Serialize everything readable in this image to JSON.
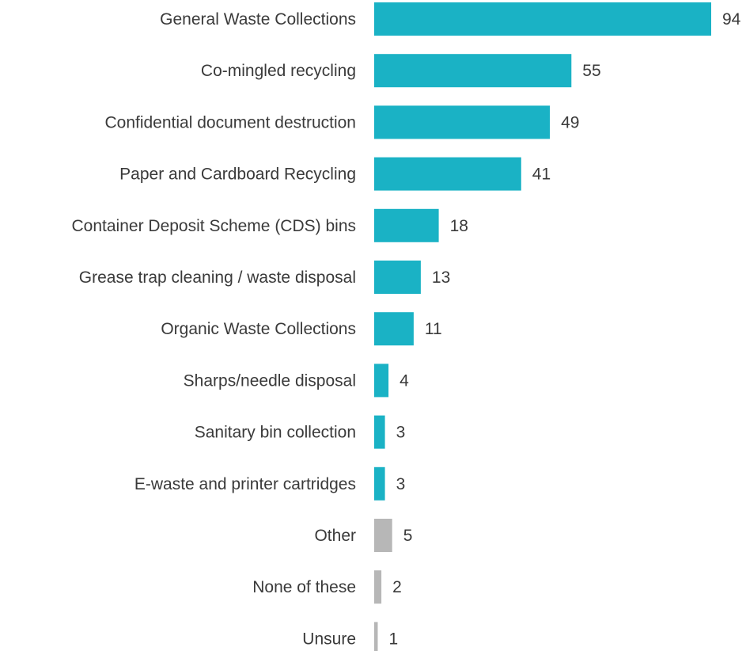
{
  "chart_data": {
    "type": "bar",
    "orientation": "horizontal",
    "title": "",
    "xlabel": "",
    "ylabel": "",
    "categories": [
      "General Waste Collections",
      "Co-mingled recycling",
      "Confidential document destruction",
      "Paper and Cardboard Recycling",
      "Container Deposit Scheme (CDS) bins",
      "Grease trap cleaning / waste disposal",
      "Organic Waste Collections",
      "Sharps/needle disposal",
      "Sanitary bin collection",
      "E-waste and printer cartridges",
      "Other",
      "None of these",
      "Unsure"
    ],
    "values": [
      94,
      55,
      49,
      41,
      18,
      13,
      11,
      4,
      3,
      3,
      5,
      2,
      1
    ],
    "bar_colors": [
      "#1ab2c5",
      "#1ab2c5",
      "#1ab2c5",
      "#1ab2c5",
      "#1ab2c5",
      "#1ab2c5",
      "#1ab2c5",
      "#1ab2c5",
      "#1ab2c5",
      "#1ab2c5",
      "#b7b7b7",
      "#b7b7b7",
      "#b7b7b7"
    ],
    "xlim": [
      0,
      94
    ],
    "grid": false,
    "legend": "none"
  }
}
